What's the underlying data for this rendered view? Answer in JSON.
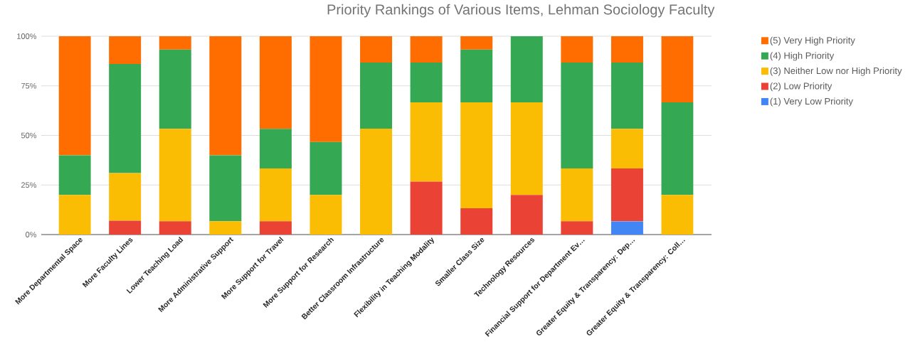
{
  "chart_data": {
    "type": "bar",
    "stacked": true,
    "title": "Priority Rankings of Various Items, Lehman Sociology Faculty",
    "categories": [
      "More Departmental Space",
      "More Faculty Lines",
      "Lower Teaching Load",
      "More Administrative Support",
      "More Support for Travel",
      "More Support for Research",
      "Better Classroom Infrastructure",
      "Flexibility in Teaching Modality",
      "Smaller Class Size",
      "Technology Resources",
      "Financial Support for Department Ev…",
      "Greater Equity & Transparency: Dep…",
      "Greater Equity & Transparency: Coll…"
    ],
    "series": [
      {
        "name": "(1) Very Low Priority",
        "color": "#4285f4",
        "values": [
          0,
          0,
          0,
          0,
          0,
          0,
          0,
          0,
          0,
          0,
          0,
          6.7,
          0
        ]
      },
      {
        "name": "(2) Low Priority",
        "color": "#ea4335",
        "values": [
          0,
          7,
          6.7,
          0,
          6.7,
          0,
          0,
          26.7,
          13.3,
          20,
          6.7,
          26.6,
          0
        ]
      },
      {
        "name": "(3) Neither Low nor High Priority",
        "color": "#fbbc04",
        "values": [
          20,
          24,
          46.6,
          6.7,
          26.6,
          20,
          53.4,
          40,
          53.4,
          46.7,
          26.6,
          20,
          20
        ]
      },
      {
        "name": "(4) High Priority",
        "color": "#34a853",
        "values": [
          20,
          55,
          40,
          33.3,
          20,
          26.7,
          33.3,
          20,
          26.6,
          33.3,
          53.4,
          33.4,
          46.7
        ]
      },
      {
        "name": "(5) Very High Priority",
        "color": "#ff6d01",
        "values": [
          60,
          14,
          6.7,
          60,
          46.7,
          53.3,
          13.3,
          13.3,
          6.7,
          0,
          13.3,
          13.3,
          33.3
        ]
      }
    ],
    "ylim": [
      0,
      100
    ],
    "yticks": [
      {
        "value": 0,
        "label": "0%"
      },
      {
        "value": 25,
        "label": "25%"
      },
      {
        "value": 50,
        "label": "50%"
      },
      {
        "value": 75,
        "label": "75%"
      },
      {
        "value": 100,
        "label": "100%"
      }
    ],
    "grid": "y",
    "legend": "right"
  }
}
